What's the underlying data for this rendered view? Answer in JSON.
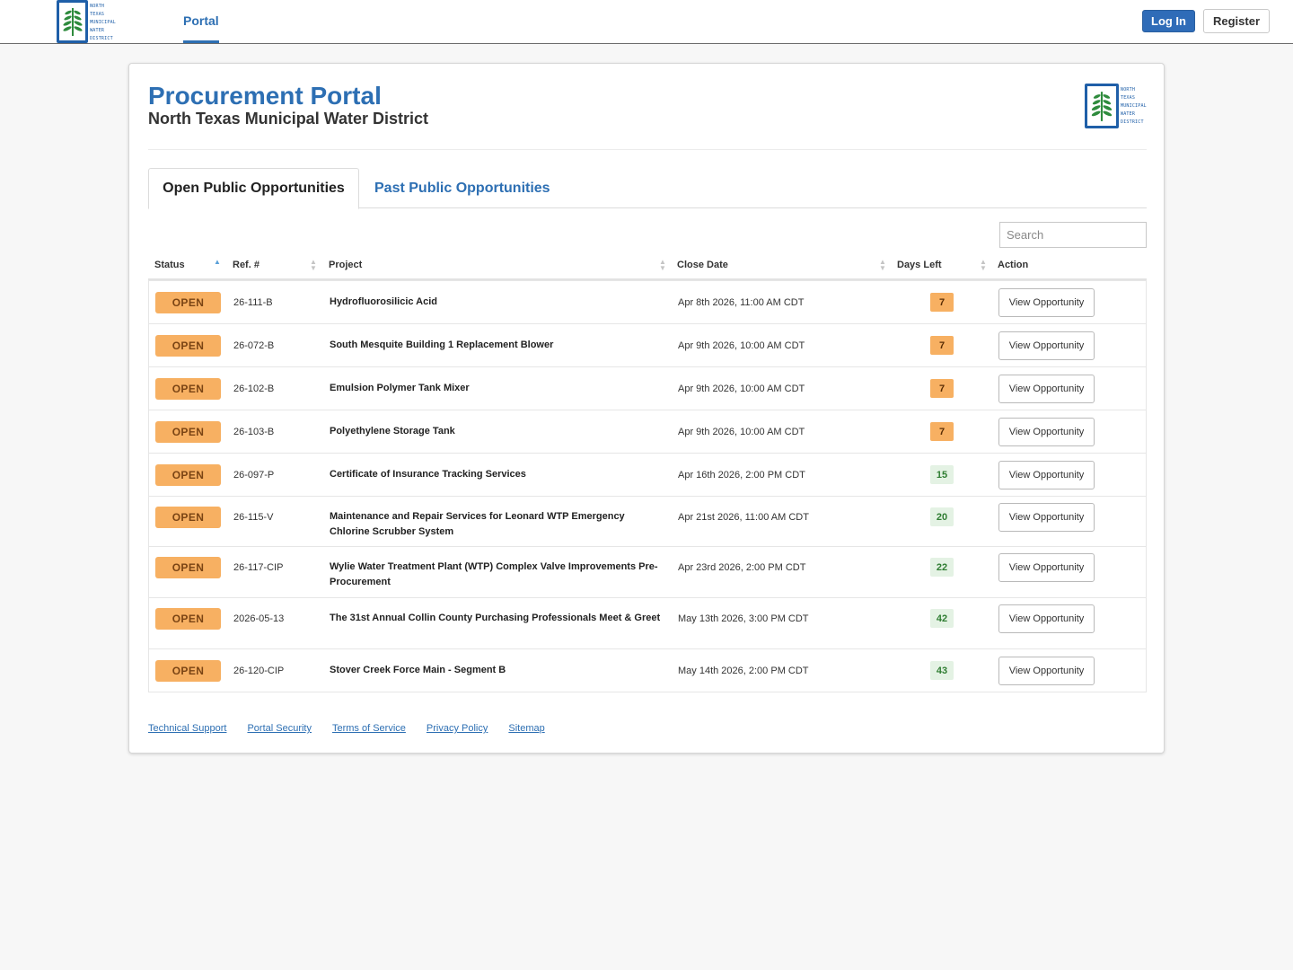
{
  "nav": {
    "logo_words": [
      "NORTH",
      "TEXAS",
      "MUNICIPAL",
      "WATER",
      "DISTRICT"
    ],
    "portal_label": "Portal",
    "login_label": "Log In",
    "register_label": "Register"
  },
  "header": {
    "title": "Procurement Portal",
    "subtitle": "North Texas Municipal Water District",
    "logo_words": [
      "NORTH",
      "TEXAS",
      "MUNICIPAL",
      "WATER",
      "DISTRICT"
    ]
  },
  "tabs": [
    {
      "label": "Open Public Opportunities",
      "active": true
    },
    {
      "label": "Past Public Opportunities",
      "active": false
    }
  ],
  "search": {
    "placeholder": "Search"
  },
  "table": {
    "columns": [
      "Status",
      "Ref. #",
      "Project",
      "Close Date",
      "Days Left",
      "Action"
    ],
    "rows": [
      {
        "status": "OPEN",
        "ref": "26-111-B",
        "project": "Hydrofluorosilicic Acid",
        "close_date": "Apr 8th 2026, 11:00 AM CDT",
        "days_left": "7",
        "action": "View Opportunity"
      },
      {
        "status": "OPEN",
        "ref": "26-072-B",
        "project": "South Mesquite Building 1 Replacement Blower",
        "close_date": "Apr 9th 2026, 10:00 AM CDT",
        "days_left": "7",
        "action": "View Opportunity"
      },
      {
        "status": "OPEN",
        "ref": "26-102-B",
        "project": "Emulsion Polymer Tank Mixer",
        "close_date": "Apr 9th 2026, 10:00 AM CDT",
        "days_left": "7",
        "action": "View Opportunity"
      },
      {
        "status": "OPEN",
        "ref": "26-103-B",
        "project": "Polyethylene Storage Tank",
        "close_date": "Apr 9th 2026, 10:00 AM CDT",
        "days_left": "7",
        "action": "View Opportunity"
      },
      {
        "status": "OPEN",
        "ref": "26-097-P",
        "project": "Certificate of Insurance Tracking Services",
        "close_date": "Apr 16th 2026, 2:00 PM CDT",
        "days_left": "15",
        "action": "View Opportunity"
      },
      {
        "status": "OPEN",
        "ref": "26-115-V",
        "project": "Maintenance and Repair Services for Leonard WTP Emergency Chlorine Scrubber System",
        "close_date": "Apr 21st 2026, 11:00 AM CDT",
        "days_left": "20",
        "action": "View Opportunity"
      },
      {
        "status": "OPEN",
        "ref": "26-117-CIP",
        "project": "Wylie Water Treatment Plant (WTP) Complex Valve Improvements Pre-Procurement",
        "close_date": "Apr 23rd 2026, 2:00 PM CDT",
        "days_left": "22",
        "action": "View Opportunity"
      },
      {
        "status": "OPEN",
        "ref": "2026-05-13",
        "project": "The 31st Annual Collin County Purchasing Professionals Meet & Greet",
        "close_date": "May 13th 2026, 3:00 PM CDT",
        "days_left": "42",
        "action": "View Opportunity"
      },
      {
        "status": "OPEN",
        "ref": "26-120-CIP",
        "project": "Stover Creek Force Main - Segment B",
        "close_date": "May 14th 2026, 2:00 PM CDT",
        "days_left": "43",
        "action": "View Opportunity"
      }
    ]
  },
  "footer": {
    "links": [
      "Technical Support",
      "Portal Security",
      "Terms of Service",
      "Privacy Policy",
      "Sitemap"
    ]
  },
  "colors": {
    "brand_blue": "#2d6fb3",
    "open_badge": "#f7b062",
    "days_warn": "#f7b062",
    "days_ok": "#e4f2e4"
  }
}
